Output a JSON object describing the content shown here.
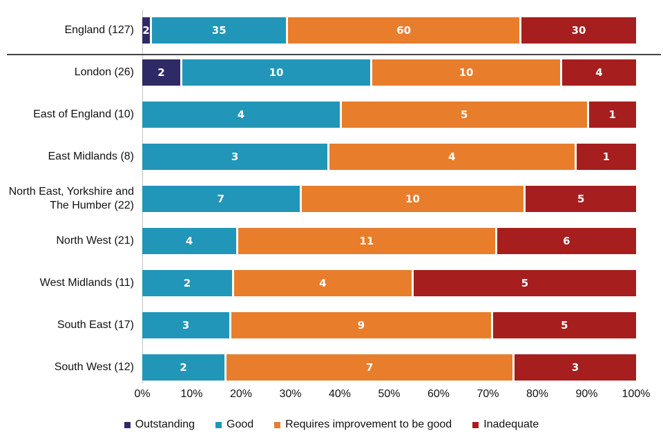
{
  "chart_data": {
    "type": "bar",
    "orientation": "horizontal",
    "stacked": true,
    "stack_unit": "percent_of_row_total",
    "title": "",
    "xlabel": "",
    "ylabel": "",
    "xlim": [
      0,
      100
    ],
    "grid": false,
    "legend_position": "bottom",
    "categories": [
      "Outstanding",
      "Good",
      "Requires improvement to be good",
      "Inadequate"
    ],
    "colors": [
      "#2E2A66",
      "#2196B8",
      "#E87D2C",
      "#A61E1E"
    ],
    "x_ticks": [
      "0%",
      "10%",
      "20%",
      "30%",
      "40%",
      "50%",
      "60%",
      "70%",
      "80%",
      "90%",
      "100%"
    ],
    "rows": [
      {
        "label": "England (127)",
        "total": 127,
        "values": [
          2,
          35,
          60,
          30
        ]
      },
      {
        "label": "London (26)",
        "total": 26,
        "values": [
          2,
          10,
          10,
          4
        ]
      },
      {
        "label": "East of England (10)",
        "total": 10,
        "values": [
          0,
          4,
          5,
          1
        ]
      },
      {
        "label": "East Midlands (8)",
        "total": 8,
        "values": [
          0,
          3,
          4,
          1
        ]
      },
      {
        "label": "North East, Yorkshire and The Humber (22)",
        "total": 22,
        "values": [
          0,
          7,
          10,
          5
        ]
      },
      {
        "label": "North West (21)",
        "total": 21,
        "values": [
          0,
          4,
          11,
          6
        ]
      },
      {
        "label": "West Midlands (11)",
        "total": 11,
        "values": [
          0,
          2,
          4,
          5
        ]
      },
      {
        "label": "South East (17)",
        "total": 17,
        "values": [
          0,
          3,
          9,
          5
        ]
      },
      {
        "label": "South West (12)",
        "total": 12,
        "values": [
          0,
          2,
          7,
          3
        ]
      }
    ]
  }
}
